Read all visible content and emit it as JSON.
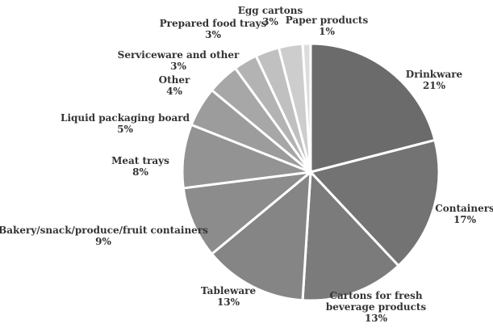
{
  "chart_data": {
    "type": "pie",
    "title": "",
    "slices": [
      {
        "name": "Drinkware",
        "value": 21,
        "label": "21%",
        "color": "#6b6b6b"
      },
      {
        "name": "Containers",
        "value": 17,
        "label": "17%",
        "color": "#737373"
      },
      {
        "name": "Cartons for fresh beverage products",
        "value": 13,
        "label": "13%",
        "color": "#7b7b7b"
      },
      {
        "name": "Tableware",
        "value": 13,
        "label": "13%",
        "color": "#858585"
      },
      {
        "name": "Bakery/snack/produce/fruit containers",
        "value": 9,
        "label": "9%",
        "color": "#8c8c8c"
      },
      {
        "name": "Meat trays",
        "value": 8,
        "label": "8%",
        "color": "#939393"
      },
      {
        "name": "Liquid packaging board",
        "value": 5,
        "label": "5%",
        "color": "#9c9c9c"
      },
      {
        "name": "Other",
        "value": 4,
        "label": "4%",
        "color": "#a7a7a7"
      },
      {
        "name": "Serviceware and other",
        "value": 3,
        "label": "3%",
        "color": "#b3b3b3"
      },
      {
        "name": "Prepared food trays",
        "value": 3,
        "label": "3%",
        "color": "#c0c0c0"
      },
      {
        "name": "Egg cartons",
        "value": 3,
        "label": "3%",
        "color": "#cdcdcd"
      },
      {
        "name": "Paper products",
        "value": 1,
        "label": "1%",
        "color": "#dcdcdc"
      }
    ]
  }
}
